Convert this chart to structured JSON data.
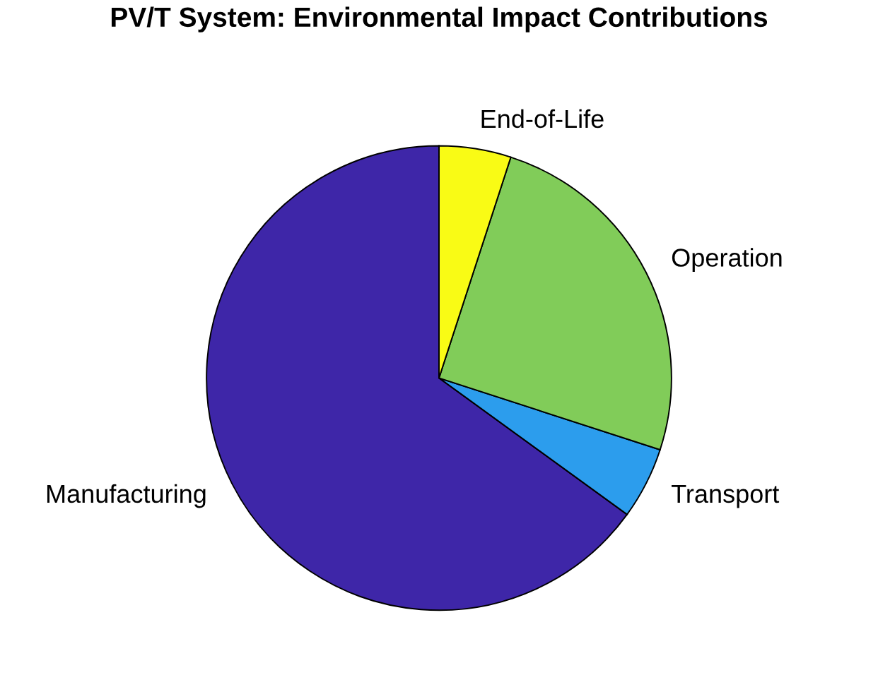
{
  "chart_data": {
    "type": "pie",
    "title": "PV/T System: Environmental Impact Contributions",
    "categories": [
      "Manufacturing",
      "Transport",
      "Operation",
      "End-of-Life"
    ],
    "values": [
      65,
      5,
      25,
      5
    ],
    "colors": [
      "#3e26a8",
      "#2c9ded",
      "#81cc59",
      "#f9fb15"
    ]
  }
}
